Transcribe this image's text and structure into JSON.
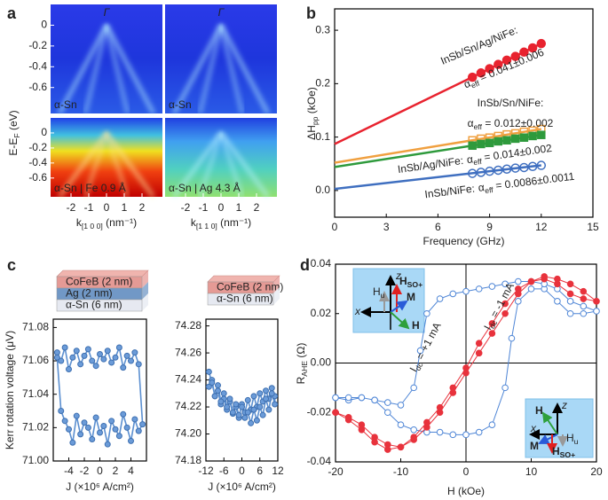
{
  "chart_data": [
    {
      "type": "image",
      "panel_label": "a",
      "ylabel": {
        "main": "E-E",
        "sub": "F",
        "unit": " (eV)"
      },
      "ylim": [
        -0.85,
        0.2
      ],
      "yticks": [
        0,
        -0.2,
        -0.4,
        -0.6
      ],
      "xlim": [
        -3.15,
        3.15
      ],
      "xticks": [
        -2,
        -1,
        0,
        1,
        2
      ],
      "xlabels": [
        {
          "main": "k",
          "sub": "[1 0 0]",
          "unit": " (nm⁻¹)"
        },
        {
          "main": "k",
          "sub": "[1 1 0]",
          "unit": " (nm⁻¹)"
        }
      ],
      "point_label": "Γ",
      "images": [
        {
          "label": "α-Sn"
        },
        {
          "label": "α-Sn"
        },
        {
          "label": "α-Sn | Fe 0.9 Å"
        },
        {
          "label": "α-Sn | Ag 4.3 Å"
        }
      ]
    },
    {
      "type": "scatter",
      "panel_label": "b",
      "xlabel": "Frequency (GHz)",
      "ylabel": {
        "main": "ΔH",
        "sub": "pp",
        "unit": " (kOe)"
      },
      "xlim": [
        0,
        15
      ],
      "xticks": [
        0,
        3,
        6,
        9,
        12,
        15
      ],
      "ylim": [
        -0.05,
        0.34
      ],
      "yticks": [
        {
          "value": 0,
          "label": "0.0"
        },
        0.1,
        0.2,
        0.3
      ],
      "series": [
        {
          "name": "InSb/Sn/Ag/NiFe:",
          "alpha": {
            "main": "α",
            "sub": "eff",
            "unit": " = 0.041±0.006"
          },
          "color": "#e8232f",
          "marker": "circle",
          "filled": true,
          "x": [
            8,
            8.5,
            9,
            9.5,
            10,
            10.5,
            11,
            11.5,
            12
          ],
          "values": [
            0.212,
            0.22,
            0.228,
            0.236,
            0.244,
            0.251,
            0.259,
            0.267,
            0.275
          ],
          "fit_x": [
            0,
            12
          ],
          "fit_values": [
            0.087,
            0.275
          ]
        },
        {
          "name": "InSb/Sn/NiFe:",
          "alpha": {
            "main": "α",
            "sub": "eff",
            "unit": " = 0.012±0.002"
          },
          "color": "#f0a040",
          "marker": "square",
          "filled": false,
          "x": [
            8,
            8.5,
            9,
            9.5,
            10,
            10.5,
            11,
            11.5,
            12
          ],
          "values": [
            0.094,
            0.097,
            0.099,
            0.102,
            0.105,
            0.107,
            0.11,
            0.112,
            0.115
          ],
          "fit_x": [
            0,
            12
          ],
          "fit_values": [
            0.052,
            0.115
          ]
        },
        {
          "name": "InSb/Ag/NiFe:",
          "alpha": {
            "main": "α",
            "sub": "eff",
            "unit": " = 0.014±0.002"
          },
          "color": "#2e9a3c",
          "marker": "square",
          "filled": true,
          "x": [
            8,
            8.5,
            9,
            9.5,
            10,
            10.5,
            11,
            11.5,
            12
          ],
          "values": [
            0.084,
            0.087,
            0.089,
            0.092,
            0.094,
            0.097,
            0.099,
            0.102,
            0.104
          ],
          "fit_x": [
            0,
            12
          ],
          "fit_values": [
            0.044,
            0.104
          ]
        },
        {
          "name": "InSb/NiFe:",
          "alpha": {
            "main": "α",
            "sub": "eff",
            "unit": " = 0.0086±0.0011"
          },
          "color": "#3f6fc0",
          "marker": "circle",
          "filled": false,
          "x": [
            8,
            8.5,
            9,
            9.5,
            10,
            10.5,
            11,
            11.5,
            12
          ],
          "values": [
            0.032,
            0.034,
            0.036,
            0.038,
            0.04,
            0.042,
            0.043,
            0.045,
            0.047
          ],
          "fit_x": [
            0,
            12
          ],
          "fit_values": [
            0.003,
            0.047
          ]
        }
      ]
    },
    {
      "type": "line",
      "panel_label": "c",
      "ylabel": "Kerr rotation voltage (μV)",
      "xlabel": "J (×10⁶ A/cm²)",
      "layers": [
        "CoFeB (2 nm)",
        "Ag (2 nm)",
        "α-Sn (6 nm)"
      ],
      "xlim": [
        -6,
        6
      ],
      "xticks": [
        -4,
        -2,
        0,
        2,
        4
      ],
      "ylim": [
        71.0,
        71.085
      ],
      "yticks": [
        {
          "value": 71.0,
          "label": "71.00"
        },
        71.02,
        71.04,
        71.06,
        71.08
      ],
      "series": [
        {
          "color": "#5b8fd0",
          "x": [
            -5.5,
            -5,
            -4.5,
            -4,
            -3.5,
            -3,
            -2.5,
            -2,
            -1.5,
            -1,
            -0.5,
            0,
            0.5,
            1,
            1.5,
            2,
            2.5,
            3,
            3.5,
            4,
            4.5,
            5,
            5.5,
            5,
            4.5,
            4,
            3.5,
            3,
            2.5,
            2,
            1.5,
            1,
            0.5,
            0,
            -0.5,
            -1,
            -1.5,
            -2,
            -2.5,
            -3,
            -3.5,
            -4,
            -4.5,
            -5,
            -5.5
          ],
          "values": [
            71.065,
            71.06,
            71.068,
            71.055,
            71.062,
            71.066,
            71.058,
            71.063,
            71.067,
            71.06,
            71.057,
            71.064,
            71.061,
            71.066,
            71.059,
            71.062,
            71.068,
            71.056,
            71.063,
            71.06,
            71.065,
            71.058,
            71.022,
            71.018,
            71.025,
            71.012,
            71.02,
            71.028,
            71.015,
            71.019,
            71.024,
            71.01,
            71.021,
            71.017,
            71.026,
            71.013,
            71.02,
            71.023,
            71.016,
            71.027,
            71.011,
            71.019,
            71.024,
            71.03,
            71.062
          ]
        }
      ]
    },
    {
      "type": "line",
      "xlabel": "J (×10⁶ A/cm²)",
      "layers": [
        "CoFeB (2 nm)",
        "α-Sn (6 nm)"
      ],
      "xlim": [
        -12,
        12
      ],
      "xticks": [
        -12,
        -6,
        0,
        6,
        12
      ],
      "ylim": [
        74.18,
        74.285
      ],
      "yticks": [
        74.18,
        {
          "value": 74.2,
          "label": "74.20"
        },
        74.22,
        74.24,
        74.26,
        74.28
      ],
      "series": [
        {
          "color": "#5b8fd0",
          "x": [
            -11,
            -10,
            -9,
            -8,
            -7,
            -6,
            -5,
            -4,
            -3,
            -2,
            -1,
            0,
            1,
            2,
            3,
            4,
            5,
            6,
            7,
            8,
            9,
            10,
            11,
            11,
            10,
            9,
            8,
            7,
            6,
            5,
            4,
            3,
            2,
            1,
            0,
            -1,
            -2,
            -3,
            -4,
            -5,
            -6,
            -7,
            -8,
            -9,
            -10,
            -11
          ],
          "values": [
            74.235,
            74.24,
            74.228,
            74.232,
            74.222,
            74.226,
            74.218,
            74.224,
            74.215,
            74.22,
            74.212,
            74.222,
            74.216,
            74.225,
            74.218,
            74.228,
            74.22,
            74.23,
            74.224,
            74.232,
            74.226,
            74.234,
            74.228,
            74.222,
            74.23,
            74.218,
            74.226,
            74.214,
            74.22,
            74.21,
            74.218,
            74.208,
            74.216,
            74.212,
            74.22,
            74.214,
            74.222,
            74.216,
            74.226,
            74.22,
            74.23,
            74.224,
            74.236,
            74.228,
            74.238,
            74.246
          ]
        }
      ]
    },
    {
      "type": "line",
      "panel_label": "d",
      "xlabel": {
        "main": "H",
        "unit": " (kOe)"
      },
      "ylabel": {
        "main": "R",
        "sub": "AHE",
        "unit": " (Ω)"
      },
      "xlim": [
        -20,
        20
      ],
      "xticks": [
        -20,
        -10,
        0,
        10,
        20
      ],
      "ylim": [
        -0.04,
        0.04
      ],
      "yticks": [
        -0.04,
        -0.02,
        {
          "value": 0,
          "label": "0.00"
        },
        0.02,
        0.04
      ],
      "inset_text": {
        "z": "z",
        "x": "x",
        "hu": {
          "main": "H",
          "sub": "u"
        },
        "hso": {
          "main": "H",
          "sub": "SO+"
        },
        "m": "M",
        "h": "H"
      },
      "series": [
        {
          "label": {
            "main": "I",
            "sub": "dc",
            "unit": " = +1 mA"
          },
          "color": "#4f86d6",
          "filled": false,
          "x": [
            -20,
            -18,
            -16,
            -14,
            -12,
            -10,
            -8,
            -6,
            -4,
            -2,
            0,
            2,
            4,
            6,
            7,
            8,
            10,
            12,
            14,
            16,
            18,
            20,
            18,
            16,
            14,
            12,
            10,
            8,
            6,
            4,
            2,
            0,
            -2,
            -4,
            -6,
            -7,
            -8,
            -10,
            -12,
            -14,
            -16,
            -18,
            -20
          ],
          "values": [
            -0.014,
            -0.015,
            -0.014,
            -0.015,
            -0.02,
            -0.025,
            -0.027,
            -0.028,
            -0.028,
            -0.029,
            -0.029,
            -0.028,
            -0.025,
            -0.01,
            0.01,
            0.025,
            0.03,
            0.03,
            0.025,
            0.02,
            0.02,
            0.021,
            0.023,
            0.025,
            0.03,
            0.032,
            0.033,
            0.033,
            0.032,
            0.031,
            0.03,
            0.029,
            0.028,
            0.026,
            0.02,
            0.005,
            -0.01,
            -0.017,
            -0.016,
            -0.015,
            -0.014,
            -0.014,
            -0.014
          ]
        },
        {
          "label": {
            "main": "I",
            "sub": "dc",
            "unit": " = -1 mA"
          },
          "color": "#e8323c",
          "filled": true,
          "x": [
            -20,
            -18,
            -16,
            -14,
            -12,
            -10,
            -8,
            -6,
            -4,
            -2,
            0,
            2,
            4,
            6,
            8,
            10,
            12,
            14,
            16,
            18,
            20,
            18,
            16,
            14,
            12,
            10,
            8,
            6,
            4,
            2,
            0,
            -2,
            -4,
            -6,
            -8,
            -10,
            -12,
            -14,
            -16,
            -18,
            -20
          ],
          "values": [
            -0.02,
            -0.023,
            -0.027,
            -0.032,
            -0.035,
            -0.034,
            -0.03,
            -0.024,
            -0.018,
            -0.01,
            -0.002,
            0.008,
            0.016,
            0.024,
            0.03,
            0.033,
            0.034,
            0.032,
            0.028,
            0.026,
            0.025,
            0.029,
            0.032,
            0.034,
            0.035,
            0.033,
            0.028,
            0.02,
            0.012,
            0.004,
            -0.004,
            -0.012,
            -0.02,
            -0.026,
            -0.031,
            -0.034,
            -0.033,
            -0.03,
            -0.025,
            -0.022,
            -0.02
          ]
        }
      ]
    }
  ]
}
